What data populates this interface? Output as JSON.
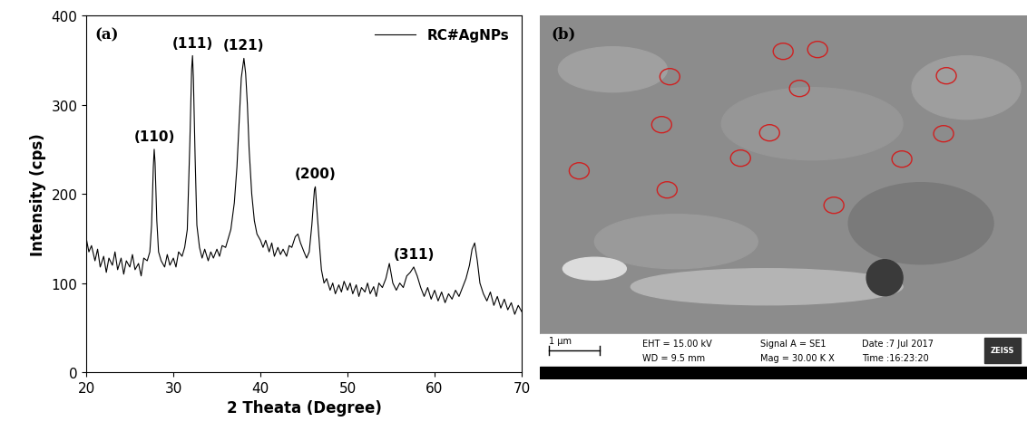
{
  "chart_data": {
    "type": "line",
    "panel_label": "(a)",
    "x_label": "2 Theata (Degree)",
    "y_label": "Intensity (cps)",
    "xlim": [
      20,
      70
    ],
    "xticks": [
      20,
      30,
      40,
      50,
      60,
      70
    ],
    "ylim": [
      0,
      400
    ],
    "yticks": [
      0,
      100,
      200,
      300,
      400
    ],
    "legend": "upper right",
    "series": [
      {
        "name": "RC#AgNPs",
        "color": "#000000",
        "x": [
          20,
          20.3,
          20.6,
          21,
          21.3,
          21.6,
          22,
          22.3,
          22.6,
          23,
          23.3,
          23.6,
          24,
          24.3,
          24.6,
          25,
          25.3,
          25.6,
          26,
          26.3,
          26.6,
          27,
          27.3,
          27.5,
          27.7,
          27.8,
          27.9,
          28.1,
          28.3,
          28.6,
          29,
          29.3,
          29.6,
          30,
          30.3,
          30.6,
          31,
          31.3,
          31.6,
          31.9,
          32.1,
          32.2,
          32.3,
          32.5,
          32.7,
          33,
          33.3,
          33.6,
          34,
          34.3,
          34.6,
          35,
          35.3,
          35.6,
          36,
          36.3,
          36.6,
          37,
          37.3,
          37.6,
          37.8,
          38,
          38.1,
          38.3,
          38.5,
          38.7,
          39,
          39.3,
          39.6,
          40,
          40.3,
          40.6,
          41,
          41.3,
          41.6,
          42,
          42.3,
          42.6,
          43,
          43.3,
          43.6,
          44,
          44.3,
          44.6,
          45,
          45.3,
          45.6,
          45.9,
          46.2,
          46.3,
          46.5,
          46.8,
          47,
          47.3,
          47.6,
          48,
          48.3,
          48.6,
          49,
          49.3,
          49.6,
          50,
          50.3,
          50.6,
          51,
          51.3,
          51.6,
          52,
          52.3,
          52.6,
          53,
          53.3,
          53.6,
          54,
          54.4,
          54.8,
          55.2,
          55.6,
          56,
          56.4,
          56.8,
          57.2,
          57.6,
          58,
          58.4,
          58.8,
          59.2,
          59.6,
          60,
          60.4,
          60.8,
          61.2,
          61.6,
          62,
          62.4,
          62.8,
          63.2,
          63.6,
          64,
          64.3,
          64.6,
          64.9,
          65.2,
          65.6,
          66,
          66.4,
          66.8,
          67.2,
          67.6,
          68,
          68.4,
          68.8,
          69.2,
          69.6,
          70
        ],
        "values": [
          150,
          135,
          142,
          125,
          138,
          118,
          130,
          112,
          128,
          120,
          135,
          115,
          128,
          110,
          125,
          118,
          132,
          115,
          122,
          108,
          128,
          125,
          135,
          165,
          230,
          250,
          235,
          170,
          135,
          125,
          118,
          132,
          120,
          128,
          118,
          135,
          130,
          140,
          160,
          260,
          340,
          355,
          330,
          240,
          165,
          140,
          128,
          138,
          125,
          135,
          128,
          138,
          130,
          142,
          140,
          150,
          160,
          190,
          230,
          290,
          330,
          345,
          352,
          335,
          300,
          250,
          200,
          170,
          155,
          148,
          140,
          148,
          135,
          145,
          130,
          140,
          132,
          138,
          130,
          142,
          140,
          152,
          155,
          145,
          135,
          128,
          135,
          165,
          205,
          208,
          180,
          140,
          115,
          100,
          105,
          92,
          100,
          88,
          98,
          90,
          102,
          92,
          100,
          88,
          98,
          85,
          95,
          90,
          100,
          88,
          96,
          85,
          100,
          95,
          105,
          122,
          100,
          92,
          100,
          95,
          108,
          112,
          118,
          108,
          95,
          85,
          95,
          82,
          92,
          80,
          90,
          78,
          88,
          82,
          92,
          85,
          95,
          105,
          120,
          138,
          145,
          125,
          100,
          88,
          80,
          90,
          75,
          85,
          72,
          82,
          70,
          78,
          65,
          75,
          68
        ]
      }
    ],
    "annotations": [
      {
        "text": "(110)",
        "x": 27.8,
        "y": 250
      },
      {
        "text": "(111)",
        "x": 32.2,
        "y": 355
      },
      {
        "text": "(121)",
        "x": 38.1,
        "y": 352
      },
      {
        "text": "(200)",
        "x": 46.3,
        "y": 208
      },
      {
        "text": "(311)",
        "x": 57.6,
        "y": 118
      }
    ]
  },
  "image": {
    "panel_label": "(b)",
    "scale_bar": "1 µm",
    "info": [
      [
        "EHT = 15.00 kV",
        "WD = 9.5 mm"
      ],
      [
        "Signal A = SE1",
        "Mag = 30.00 K X"
      ],
      [
        "Date :7 Jul 2017",
        "Time :16:23:20"
      ]
    ],
    "brand": "ZEISS"
  }
}
